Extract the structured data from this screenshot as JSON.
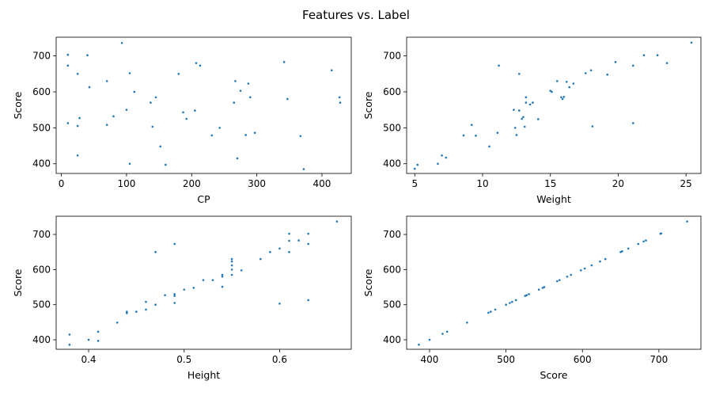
{
  "figure": {
    "title": "Features vs. Label",
    "point_color": "#1f77b4"
  },
  "chart_data": [
    {
      "type": "scatter",
      "xlabel": "CP",
      "ylabel": "Score",
      "xlim": [
        -8,
        445
      ],
      "ylim": [
        373,
        752
      ],
      "xticks": [
        0,
        100,
        200,
        300,
        400
      ],
      "yticks": [
        400,
        500,
        600,
        700
      ],
      "points": [
        [
          10,
          703
        ],
        [
          10,
          673
        ],
        [
          10,
          513
        ],
        [
          25,
          650
        ],
        [
          25,
          505
        ],
        [
          28,
          527
        ],
        [
          25,
          423
        ],
        [
          40,
          702
        ],
        [
          43,
          613
        ],
        [
          70,
          630
        ],
        [
          70,
          508
        ],
        [
          80,
          532
        ],
        [
          93,
          736
        ],
        [
          100,
          550
        ],
        [
          105,
          652
        ],
        [
          105,
          400
        ],
        [
          112,
          600
        ],
        [
          137,
          570
        ],
        [
          140,
          503
        ],
        [
          145,
          585
        ],
        [
          152,
          448
        ],
        [
          160,
          397
        ],
        [
          180,
          650
        ],
        [
          187,
          543
        ],
        [
          192,
          525
        ],
        [
          205,
          548
        ],
        [
          207,
          680
        ],
        [
          213,
          673
        ],
        [
          231,
          479
        ],
        [
          243,
          500
        ],
        [
          265,
          570
        ],
        [
          267,
          630
        ],
        [
          270,
          415
        ],
        [
          275,
          603
        ],
        [
          283,
          480
        ],
        [
          287,
          623
        ],
        [
          290,
          585
        ],
        [
          297,
          486
        ],
        [
          342,
          683
        ],
        [
          347,
          580
        ],
        [
          367,
          477
        ],
        [
          372,
          385
        ],
        [
          415,
          660
        ],
        [
          427,
          585
        ],
        [
          428,
          570
        ]
      ]
    },
    {
      "type": "scatter",
      "xlabel": "Weight",
      "ylabel": "Score",
      "xlim": [
        4.4,
        26.1
      ],
      "ylim": [
        373,
        752
      ],
      "xticks": [
        5,
        10,
        15,
        20,
        25
      ],
      "yticks": [
        400,
        500,
        600,
        700
      ],
      "points": [
        [
          5.0,
          386
        ],
        [
          5.2,
          397
        ],
        [
          6.7,
          400
        ],
        [
          7.0,
          423
        ],
        [
          7.3,
          417
        ],
        [
          8.6,
          479
        ],
        [
          9.2,
          508
        ],
        [
          9.5,
          478
        ],
        [
          10.5,
          448
        ],
        [
          11.1,
          486
        ],
        [
          11.2,
          673
        ],
        [
          12.3,
          550
        ],
        [
          12.4,
          500
        ],
        [
          12.5,
          480
        ],
        [
          12.7,
          650
        ],
        [
          12.7,
          548
        ],
        [
          12.9,
          525
        ],
        [
          13.0,
          530
        ],
        [
          13.1,
          503
        ],
        [
          13.2,
          570
        ],
        [
          13.2,
          585
        ],
        [
          13.5,
          565
        ],
        [
          13.7,
          570
        ],
        [
          14.1,
          524
        ],
        [
          15.0,
          603
        ],
        [
          15.1,
          600
        ],
        [
          15.5,
          630
        ],
        [
          15.8,
          585
        ],
        [
          15.9,
          580
        ],
        [
          16.0,
          586
        ],
        [
          16.2,
          628
        ],
        [
          16.4,
          613
        ],
        [
          16.7,
          623
        ],
        [
          17.6,
          652
        ],
        [
          18.0,
          660
        ],
        [
          18.1,
          504
        ],
        [
          19.2,
          648
        ],
        [
          19.8,
          683
        ],
        [
          21.1,
          513
        ],
        [
          21.1,
          673
        ],
        [
          21.9,
          702
        ],
        [
          22.9,
          702
        ],
        [
          23.6,
          680
        ],
        [
          25.4,
          737
        ]
      ]
    },
    {
      "type": "scatter",
      "xlabel": "Height",
      "ylabel": "Score",
      "xlim": [
        0.366,
        0.675
      ],
      "ylim": [
        373,
        752
      ],
      "xticks": [
        0.4,
        0.5,
        0.6
      ],
      "yticks": [
        400,
        500,
        600,
        700
      ],
      "points": [
        [
          0.38,
          386
        ],
        [
          0.38,
          415
        ],
        [
          0.4,
          400
        ],
        [
          0.41,
          423
        ],
        [
          0.41,
          397
        ],
        [
          0.43,
          449
        ],
        [
          0.44,
          476
        ],
        [
          0.44,
          480
        ],
        [
          0.45,
          480
        ],
        [
          0.46,
          486
        ],
        [
          0.46,
          508
        ],
        [
          0.47,
          500
        ],
        [
          0.47,
          650
        ],
        [
          0.48,
          527
        ],
        [
          0.49,
          505
        ],
        [
          0.49,
          525
        ],
        [
          0.49,
          530
        ],
        [
          0.49,
          673
        ],
        [
          0.5,
          543
        ],
        [
          0.51,
          548
        ],
        [
          0.52,
          570
        ],
        [
          0.53,
          570
        ],
        [
          0.54,
          551
        ],
        [
          0.54,
          580
        ],
        [
          0.54,
          585
        ],
        [
          0.55,
          585
        ],
        [
          0.55,
          600
        ],
        [
          0.55,
          612
        ],
        [
          0.55,
          623
        ],
        [
          0.55,
          630
        ],
        [
          0.56,
          598
        ],
        [
          0.58,
          630
        ],
        [
          0.59,
          650
        ],
        [
          0.6,
          660
        ],
        [
          0.6,
          503
        ],
        [
          0.61,
          650
        ],
        [
          0.61,
          682
        ],
        [
          0.61,
          702
        ],
        [
          0.62,
          683
        ],
        [
          0.63,
          702
        ],
        [
          0.63,
          673
        ],
        [
          0.63,
          513
        ],
        [
          0.66,
          737
        ]
      ]
    },
    {
      "type": "scatter",
      "xlabel": "Score",
      "ylabel": "Score",
      "xlim": [
        370,
        755
      ],
      "ylim": [
        373,
        752
      ],
      "xticks": [
        400,
        500,
        600,
        700
      ],
      "yticks": [
        400,
        500,
        600,
        700
      ],
      "points": [
        [
          386,
          386
        ],
        [
          400,
          400
        ],
        [
          417,
          417
        ],
        [
          423,
          423
        ],
        [
          449,
          449
        ],
        [
          477,
          477
        ],
        [
          480,
          480
        ],
        [
          486,
          486
        ],
        [
          500,
          500
        ],
        [
          505,
          505
        ],
        [
          508,
          508
        ],
        [
          513,
          513
        ],
        [
          525,
          525
        ],
        [
          527,
          527
        ],
        [
          530,
          530
        ],
        [
          543,
          543
        ],
        [
          548,
          548
        ],
        [
          550,
          550
        ],
        [
          567,
          567
        ],
        [
          570,
          570
        ],
        [
          580,
          580
        ],
        [
          585,
          585
        ],
        [
          598,
          598
        ],
        [
          603,
          603
        ],
        [
          612,
          612
        ],
        [
          623,
          623
        ],
        [
          630,
          630
        ],
        [
          650,
          650
        ],
        [
          652,
          652
        ],
        [
          660,
          660
        ],
        [
          673,
          673
        ],
        [
          680,
          680
        ],
        [
          683,
          683
        ],
        [
          702,
          702
        ],
        [
          703,
          703
        ],
        [
          737,
          737
        ]
      ]
    }
  ]
}
